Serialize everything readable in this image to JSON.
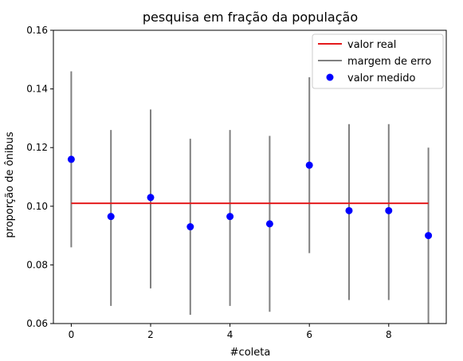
{
  "chart_data": {
    "type": "scatter",
    "title": "pesquisa em fração da população",
    "xlabel": "#coleta",
    "ylabel": "proporção de ônibus",
    "xlim": [
      -0.45,
      9.45
    ],
    "ylim": [
      0.06,
      0.16
    ],
    "x_ticks": [
      0,
      2,
      4,
      6,
      8
    ],
    "x_tick_labels": [
      "0",
      "2",
      "4",
      "6",
      "8"
    ],
    "y_ticks": [
      0.06,
      0.08,
      0.1,
      0.12,
      0.14,
      0.16
    ],
    "y_tick_labels": [
      "0.06",
      "0.08",
      "0.10",
      "0.12",
      "0.14",
      "0.16"
    ],
    "grid": false,
    "legend_position": "top-right",
    "series": [
      {
        "name": "valor real",
        "kind": "line",
        "color": "#e41a1c",
        "x": [
          0,
          9
        ],
        "y": [
          0.101,
          0.101
        ]
      },
      {
        "name": "margem de erro",
        "kind": "errorbar",
        "color": "#808080",
        "x": [
          0,
          1,
          2,
          3,
          4,
          5,
          6,
          7,
          8,
          9
        ],
        "low": [
          0.086,
          0.066,
          0.072,
          0.063,
          0.066,
          0.064,
          0.084,
          0.068,
          0.068,
          0.06
        ],
        "high": [
          0.146,
          0.126,
          0.133,
          0.123,
          0.126,
          0.124,
          0.144,
          0.128,
          0.128,
          0.12
        ]
      },
      {
        "name": "valor medido",
        "kind": "scatter",
        "color": "#0000ff",
        "x": [
          0,
          1,
          2,
          3,
          4,
          5,
          6,
          7,
          8,
          9
        ],
        "y": [
          0.116,
          0.0965,
          0.103,
          0.093,
          0.0965,
          0.094,
          0.114,
          0.0985,
          0.0985,
          0.09
        ]
      }
    ]
  }
}
